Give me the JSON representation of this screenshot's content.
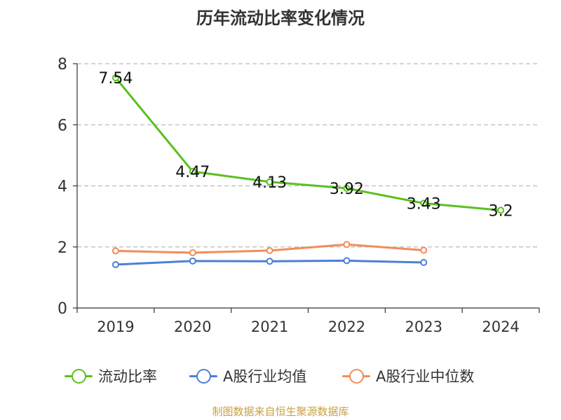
{
  "title": "历年流动比率变化情况",
  "source": "制图数据来自恒生聚源数据库",
  "colors": {
    "current_ratio": "#5ac01e",
    "industry_mean": "#4c7fd9",
    "industry_median": "#f28c5a",
    "axis": "#333333",
    "grid": "#bbbbbb"
  },
  "chart_data": {
    "type": "line",
    "title": "历年流动比率变化情况",
    "categories": [
      "2019",
      "2020",
      "2021",
      "2022",
      "2023",
      "2024"
    ],
    "ylim": [
      0,
      8
    ],
    "yticks": [
      "0",
      "2",
      "4",
      "6",
      "8"
    ],
    "grid": true,
    "legend_position": "bottom",
    "series": [
      {
        "name": "流动比率",
        "color": "#5ac01e",
        "values": [
          7.54,
          4.47,
          4.13,
          3.92,
          3.43,
          3.2
        ],
        "labels": [
          "7.54",
          "4.47",
          "4.13",
          "3.92",
          "3.43",
          "3.2"
        ]
      },
      {
        "name": "A股行业均值",
        "color": "#4c7fd9",
        "values": [
          1.42,
          1.54,
          1.53,
          1.55,
          1.49,
          null
        ]
      },
      {
        "name": "A股行业中位数",
        "color": "#f28c5a",
        "values": [
          1.87,
          1.81,
          1.88,
          2.08,
          1.89,
          null
        ]
      }
    ]
  }
}
